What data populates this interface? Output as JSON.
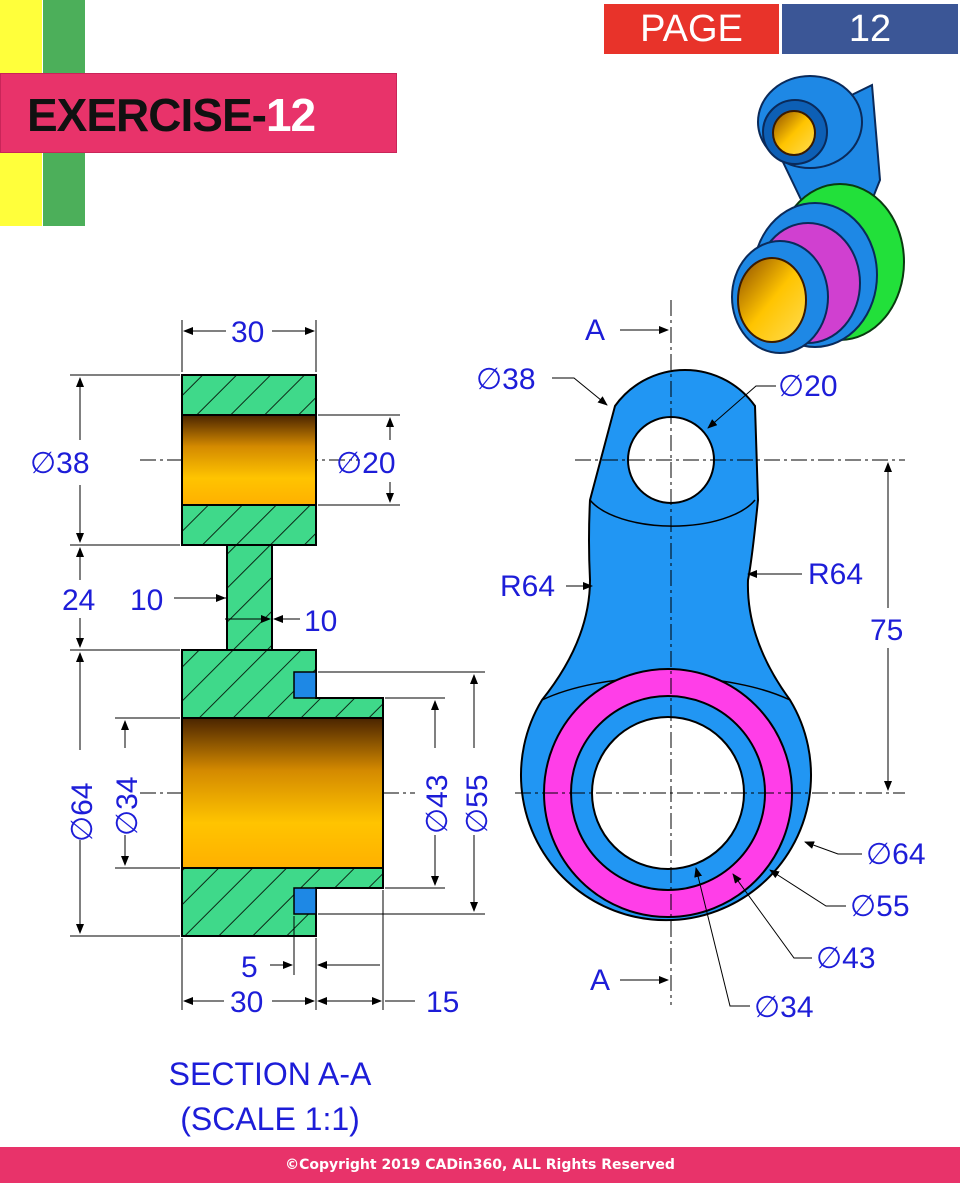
{
  "header": {
    "exercise_prefix": "EXERCISE-",
    "exercise_number": "12",
    "page_label": "PAGE",
    "page_number": "12"
  },
  "section_view": {
    "title": "SECTION A-A",
    "scale": "(SCALE 1:1)",
    "dims": {
      "top_width": "30",
      "left_dia": "∅38",
      "hole_dia": "∅20",
      "web_length": "24",
      "web_left": "10",
      "web_right": "10",
      "boss_dia": "∅64",
      "bore_dia": "∅34",
      "groove_inner": "∅43",
      "groove_outer": "∅55",
      "groove_width": "5",
      "bottom_width": "30",
      "step_width": "15"
    }
  },
  "front_view": {
    "section_mark_top": "A",
    "section_mark_bottom": "A",
    "dims": {
      "small_outer": "∅38",
      "small_hole": "∅20",
      "radius_left": "R64",
      "radius_right": "R64",
      "center_distance": "75",
      "large_outer": "∅64",
      "groove_outer": "∅55",
      "groove_inner": "∅43",
      "bore": "∅34"
    }
  },
  "footer": {
    "copyright": "©Copyright 2019 CADin360, ALL Rights Reserved"
  },
  "colors": {
    "hatch_fill": "#3fd98a",
    "bore_gold": "#f5b800",
    "part_blue": "#2196f3",
    "groove_magenta": "#ff3ee8",
    "dimension_blue": "#1d1dd8",
    "banner_pink": "#e8336a",
    "page_red": "#e8332a",
    "page_blue": "#3b5696"
  }
}
